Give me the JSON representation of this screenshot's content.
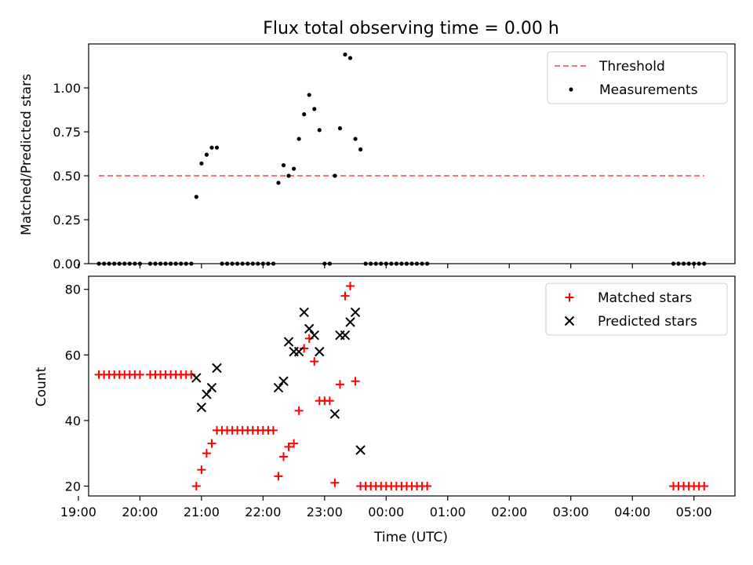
{
  "chart_data": [
    {
      "type": "scatter",
      "title": "Flux total observing time = 0.00 h",
      "xlabel": "",
      "ylabel": "Matched/Predicted stars",
      "xlim": [
        "19:10",
        "05:40"
      ],
      "ylim": [
        0,
        1.25
      ],
      "yticks": [
        "0.00",
        "0.25",
        "0.50",
        "0.75",
        "1.00"
      ],
      "legend_position": "top-right",
      "series": [
        {
          "name": "Threshold",
          "kind": "dashed-line",
          "color": "#ff7070",
          "points": [
            [
              "19:20",
              0.5
            ],
            [
              "05:10",
              0.5
            ]
          ]
        },
        {
          "name": "Measurements",
          "kind": "dot",
          "color": "#000000",
          "points": [
            [
              "19:20",
              0
            ],
            [
              "19:25",
              0
            ],
            [
              "19:30",
              0
            ],
            [
              "19:35",
              0
            ],
            [
              "19:40",
              0
            ],
            [
              "19:45",
              0
            ],
            [
              "19:50",
              0
            ],
            [
              "19:55",
              0
            ],
            [
              "20:00",
              0
            ],
            [
              "20:10",
              0
            ],
            [
              "20:15",
              0
            ],
            [
              "20:20",
              0
            ],
            [
              "20:25",
              0
            ],
            [
              "20:30",
              0
            ],
            [
              "20:35",
              0
            ],
            [
              "20:40",
              0
            ],
            [
              "20:45",
              0
            ],
            [
              "20:50",
              0
            ],
            [
              "20:55",
              0.38
            ],
            [
              "21:00",
              0.57
            ],
            [
              "21:05",
              0.62
            ],
            [
              "21:10",
              0.66
            ],
            [
              "21:15",
              0.66
            ],
            [
              "21:20",
              0
            ],
            [
              "21:25",
              0
            ],
            [
              "21:30",
              0
            ],
            [
              "21:35",
              0
            ],
            [
              "21:40",
              0
            ],
            [
              "21:45",
              0
            ],
            [
              "21:50",
              0
            ],
            [
              "21:55",
              0
            ],
            [
              "22:00",
              0
            ],
            [
              "22:05",
              0
            ],
            [
              "22:10",
              0
            ],
            [
              "22:15",
              0.46
            ],
            [
              "22:20",
              0.56
            ],
            [
              "22:25",
              0.5
            ],
            [
              "22:30",
              0.54
            ],
            [
              "22:35",
              0.71
            ],
            [
              "22:40",
              0.85
            ],
            [
              "22:45",
              0.96
            ],
            [
              "22:50",
              0.88
            ],
            [
              "22:55",
              0.76
            ],
            [
              "23:00",
              0
            ],
            [
              "23:05",
              0
            ],
            [
              "23:10",
              0.5
            ],
            [
              "23:15",
              0.77
            ],
            [
              "23:20",
              1.19
            ],
            [
              "23:25",
              1.17
            ],
            [
              "23:30",
              0.71
            ],
            [
              "23:35",
              0.65
            ],
            [
              "23:40",
              0
            ],
            [
              "23:45",
              0
            ],
            [
              "23:50",
              0
            ],
            [
              "23:55",
              0
            ],
            [
              "00:00",
              0
            ],
            [
              "00:05",
              0
            ],
            [
              "00:10",
              0
            ],
            [
              "00:15",
              0
            ],
            [
              "00:20",
              0
            ],
            [
              "00:25",
              0
            ],
            [
              "00:30",
              0
            ],
            [
              "00:35",
              0
            ],
            [
              "00:40",
              0
            ],
            [
              "04:40",
              0
            ],
            [
              "04:45",
              0
            ],
            [
              "04:50",
              0
            ],
            [
              "04:55",
              0
            ],
            [
              "05:00",
              0
            ],
            [
              "05:05",
              0
            ],
            [
              "05:10",
              0
            ]
          ]
        }
      ]
    },
    {
      "type": "scatter",
      "title": "",
      "xlabel": "Time (UTC)",
      "ylabel": "Count",
      "xlim": [
        "19:10",
        "05:40"
      ],
      "ylim": [
        17,
        84
      ],
      "yticks": [
        "20",
        "40",
        "60",
        "80"
      ],
      "xticks": [
        "19:00",
        "20:00",
        "21:00",
        "22:00",
        "23:00",
        "00:00",
        "01:00",
        "02:00",
        "03:00",
        "04:00",
        "05:00"
      ],
      "legend_position": "top-right",
      "series": [
        {
          "name": "Matched stars",
          "kind": "plus",
          "color": "#ff0000",
          "points": [
            [
              "19:20",
              54
            ],
            [
              "19:25",
              54
            ],
            [
              "19:30",
              54
            ],
            [
              "19:35",
              54
            ],
            [
              "19:40",
              54
            ],
            [
              "19:45",
              54
            ],
            [
              "19:50",
              54
            ],
            [
              "19:55",
              54
            ],
            [
              "20:00",
              54
            ],
            [
              "20:10",
              54
            ],
            [
              "20:15",
              54
            ],
            [
              "20:20",
              54
            ],
            [
              "20:25",
              54
            ],
            [
              "20:30",
              54
            ],
            [
              "20:35",
              54
            ],
            [
              "20:40",
              54
            ],
            [
              "20:45",
              54
            ],
            [
              "20:50",
              54
            ],
            [
              "20:55",
              20
            ],
            [
              "21:00",
              25
            ],
            [
              "21:05",
              30
            ],
            [
              "21:10",
              33
            ],
            [
              "21:15",
              37
            ],
            [
              "21:20",
              37
            ],
            [
              "21:25",
              37
            ],
            [
              "21:30",
              37
            ],
            [
              "21:35",
              37
            ],
            [
              "21:40",
              37
            ],
            [
              "21:45",
              37
            ],
            [
              "21:50",
              37
            ],
            [
              "21:55",
              37
            ],
            [
              "22:00",
              37
            ],
            [
              "22:05",
              37
            ],
            [
              "22:10",
              37
            ],
            [
              "22:15",
              23
            ],
            [
              "22:20",
              29
            ],
            [
              "22:25",
              32
            ],
            [
              "22:30",
              33
            ],
            [
              "22:35",
              43
            ],
            [
              "22:40",
              62
            ],
            [
              "22:45",
              65
            ],
            [
              "22:50",
              58
            ],
            [
              "22:55",
              46
            ],
            [
              "23:00",
              46
            ],
            [
              "23:05",
              46
            ],
            [
              "23:10",
              21
            ],
            [
              "23:15",
              51
            ],
            [
              "23:20",
              78
            ],
            [
              "23:25",
              81
            ],
            [
              "23:30",
              52
            ],
            [
              "23:35",
              20
            ],
            [
              "23:40",
              20
            ],
            [
              "23:45",
              20
            ],
            [
              "23:50",
              20
            ],
            [
              "23:55",
              20
            ],
            [
              "00:00",
              20
            ],
            [
              "00:05",
              20
            ],
            [
              "00:10",
              20
            ],
            [
              "00:15",
              20
            ],
            [
              "00:20",
              20
            ],
            [
              "00:25",
              20
            ],
            [
              "00:30",
              20
            ],
            [
              "00:35",
              20
            ],
            [
              "00:40",
              20
            ],
            [
              "04:40",
              20
            ],
            [
              "04:45",
              20
            ],
            [
              "04:50",
              20
            ],
            [
              "04:55",
              20
            ],
            [
              "05:00",
              20
            ],
            [
              "05:05",
              20
            ],
            [
              "05:10",
              20
            ]
          ]
        },
        {
          "name": "Predicted stars",
          "kind": "cross",
          "color": "#000000",
          "points": [
            [
              "20:55",
              53
            ],
            [
              "21:00",
              44
            ],
            [
              "21:05",
              48
            ],
            [
              "21:10",
              50
            ],
            [
              "21:15",
              56
            ],
            [
              "22:15",
              50
            ],
            [
              "22:20",
              52
            ],
            [
              "22:25",
              64
            ],
            [
              "22:30",
              61
            ],
            [
              "22:35",
              61
            ],
            [
              "22:40",
              73
            ],
            [
              "22:45",
              68
            ],
            [
              "22:50",
              66
            ],
            [
              "22:55",
              61
            ],
            [
              "23:10",
              42
            ],
            [
              "23:15",
              66
            ],
            [
              "23:20",
              66
            ],
            [
              "23:25",
              70
            ],
            [
              "23:30",
              73
            ],
            [
              "23:35",
              31
            ]
          ]
        }
      ]
    }
  ]
}
